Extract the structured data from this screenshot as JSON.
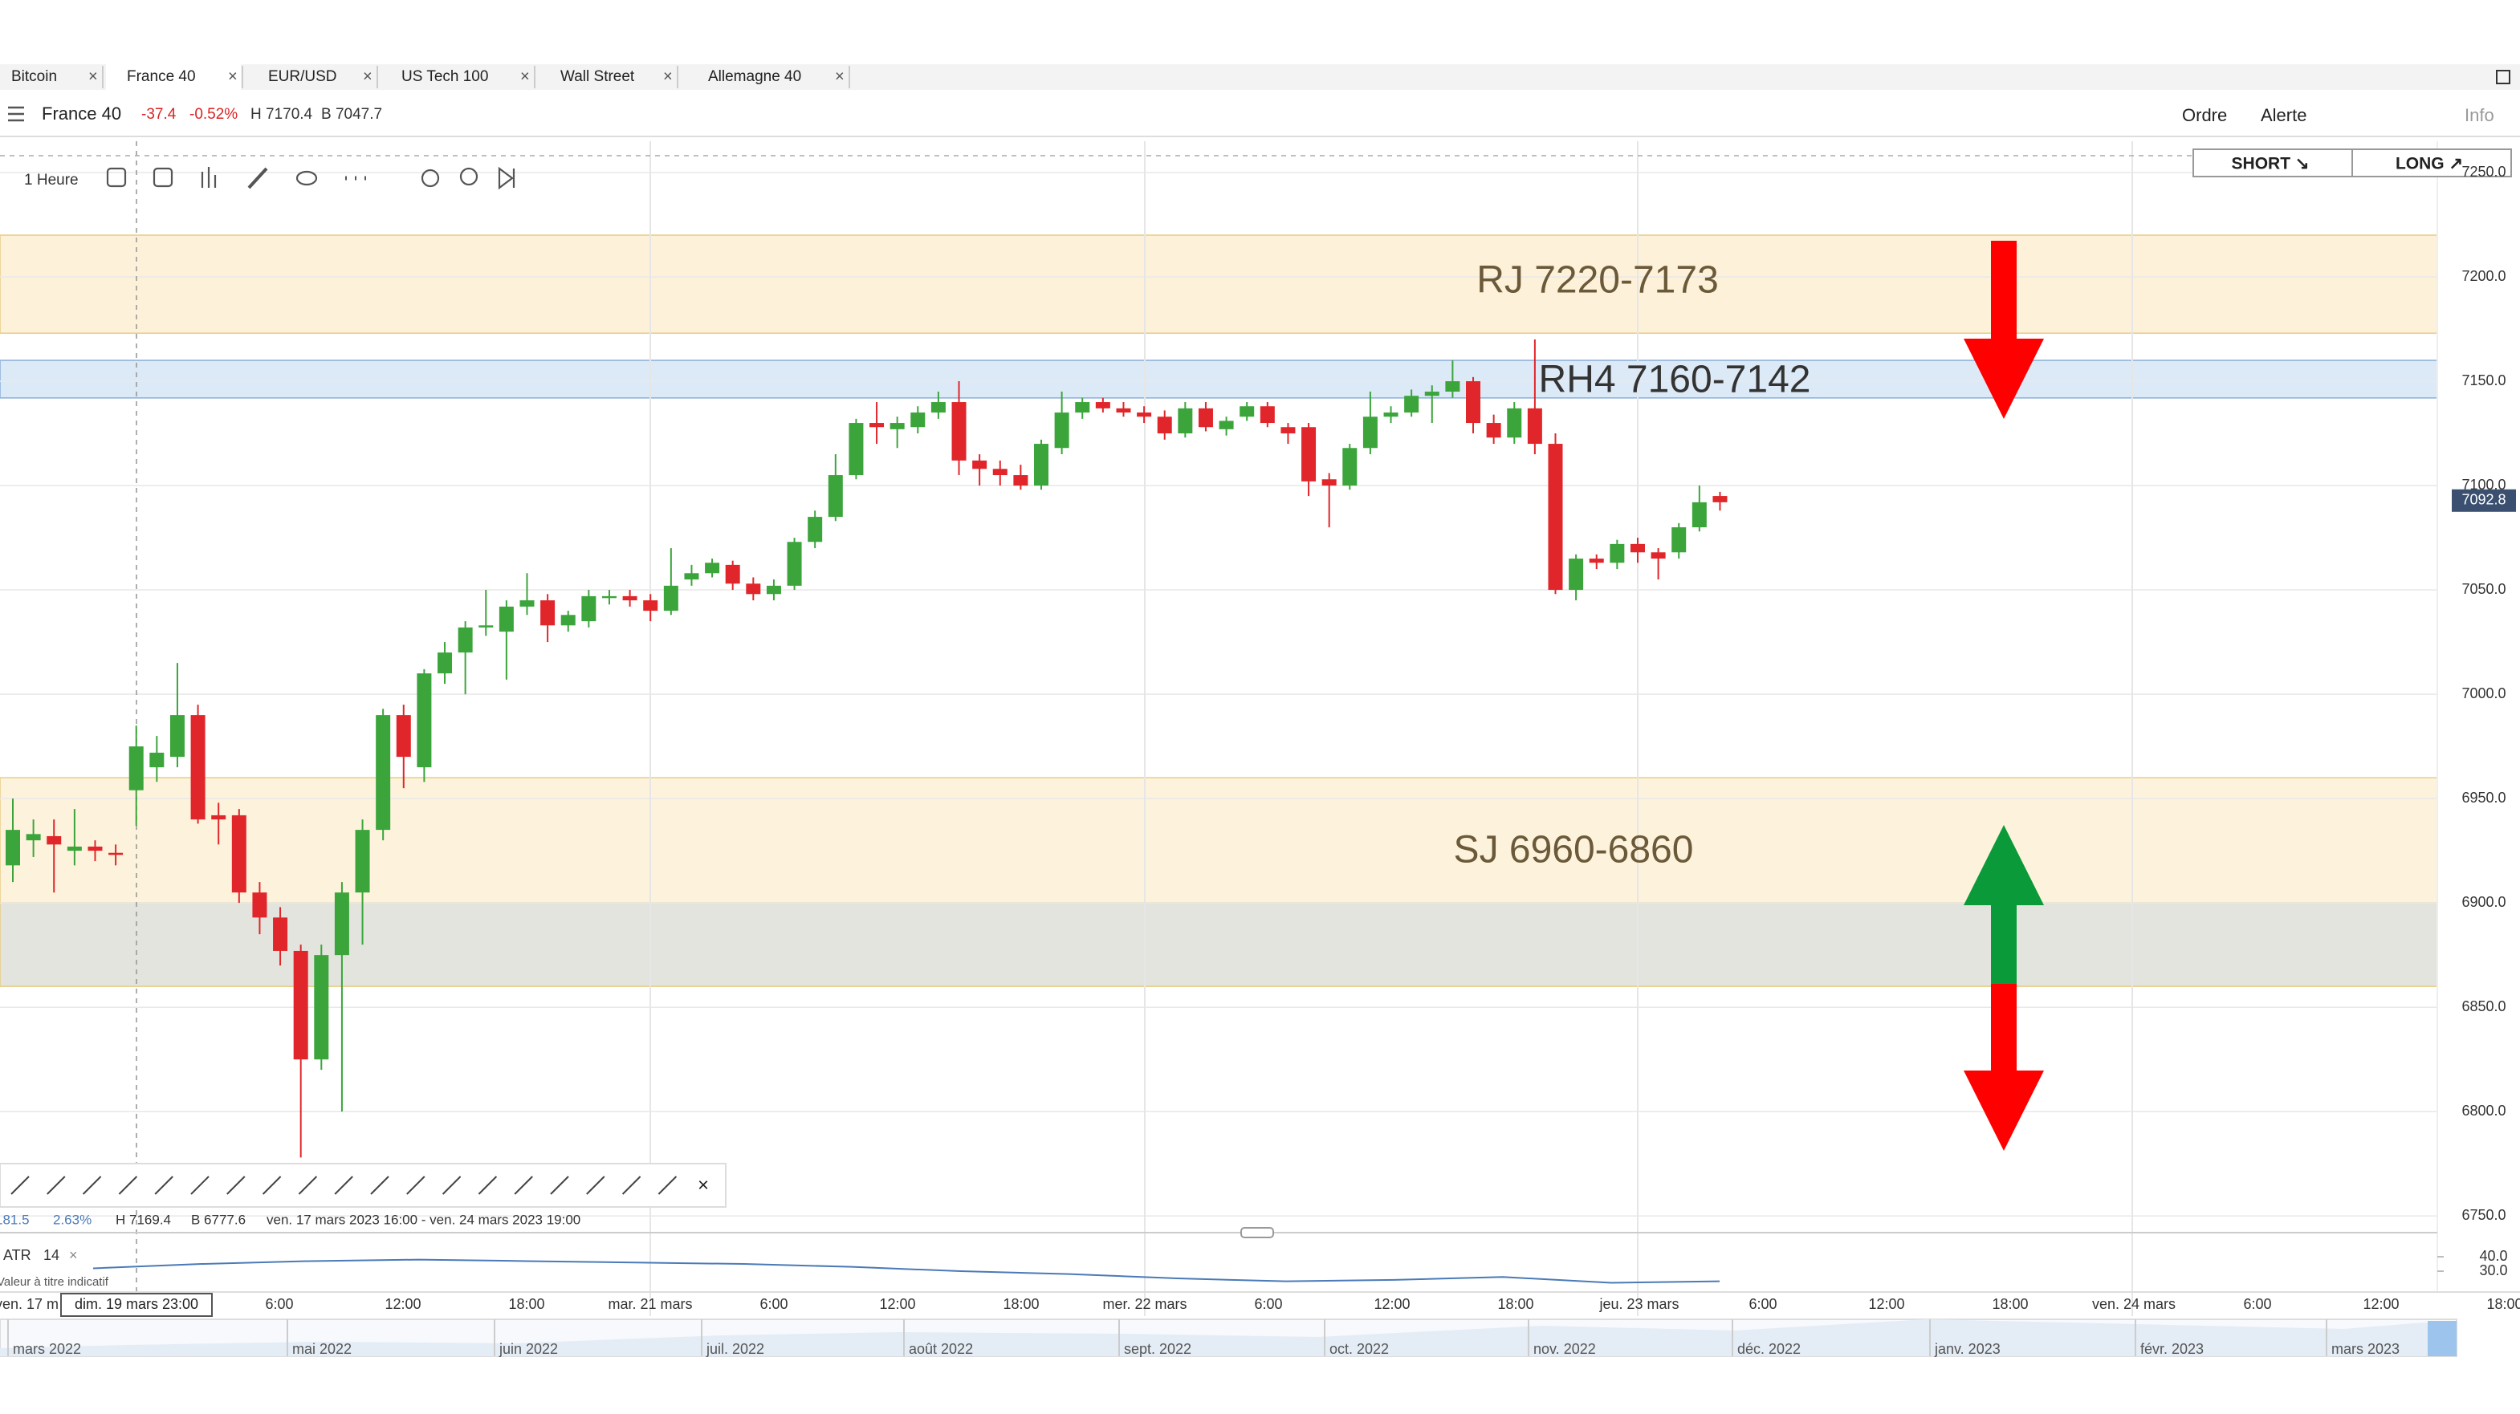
{
  "tabs": [
    "Bitcoin",
    "France 40",
    "EUR/USD",
    "US Tech 100",
    "Wall Street",
    "Allemagne 40"
  ],
  "instrument": {
    "name": "France 40",
    "change": "-37.4",
    "change_pct": "-0.52%",
    "high": "H 7170.4",
    "low": "B 7047.7"
  },
  "menu": [
    "Ordre",
    "Alerte",
    "Info"
  ],
  "timeframe": "1 Heure",
  "buttons": [
    "SHORT ↘",
    "LONG ↗"
  ],
  "footer": {
    "change": "181.5",
    "change_pct": "2.63%",
    "high": "H 7169.4",
    "low": "B 6777.6",
    "range": "ven. 17 mars 2023 16:00 - ven. 24 mars 2023 19:00"
  },
  "indicator": {
    "name": "ATR",
    "period": "14",
    "note": "Valeur à titre indicatif",
    "values": [
      32,
      35,
      37,
      38,
      37,
      36,
      35,
      33,
      30,
      28,
      25,
      23,
      24,
      26,
      22,
      23
    ],
    "ylim": [
      16.7,
      47.8
    ],
    "yticks": [
      {
        "value": 40,
        "label": "40.0"
      },
      {
        "value": 30,
        "label": "30.0"
      }
    ]
  },
  "navigator": [
    "mars 2022",
    "mai 2022",
    "juin 2022",
    "juil. 2022",
    "août 2022",
    "sept. 2022",
    "oct. 2022",
    "nov. 2022",
    "déc. 2022",
    "janv. 2023",
    "févr. 2023",
    "mars 2023"
  ],
  "chart_data": {
    "type": "candlestick",
    "ylim": [
      6742,
      7265
    ],
    "yticks": [
      {
        "value": 7250,
        "label": "7250.0"
      },
      {
        "value": 7200,
        "label": "7200.0"
      },
      {
        "value": 7150,
        "label": "7150.0"
      },
      {
        "value": 7100,
        "label": "7100.0"
      },
      {
        "value": 7050,
        "label": "7050.0"
      },
      {
        "value": 7000,
        "label": "7000.0"
      },
      {
        "value": 6950,
        "label": "6950.0"
      },
      {
        "value": 6900,
        "label": "6900.0"
      },
      {
        "value": 6850,
        "label": "6850.0"
      },
      {
        "value": 6800,
        "label": "6800.0"
      },
      {
        "value": 6750,
        "label": "6750.0"
      }
    ],
    "last_price": {
      "value": 7092.8,
      "label": "7092.8"
    },
    "zones": [
      {
        "label": "RJ 7220-7173",
        "top": 7220,
        "bottom": 7173,
        "color": "#fdf2d9"
      },
      {
        "label": "RH4 7160-7142",
        "top": 7160,
        "bottom": 7142,
        "color": "#dce9f6"
      },
      {
        "label": "SJ 6960-6860",
        "top": 6960,
        "bottom": 6900,
        "color": "#fdf3dc"
      },
      {
        "top": 6900,
        "bottom": 6860,
        "color": "#e2e4dd"
      }
    ],
    "time_labels": [
      "ven. 17 m",
      "dim. 19 mars 23:00",
      "6:00",
      "12:00",
      "18:00",
      "mar. 21 mars",
      "6:00",
      "12:00",
      "18:00",
      "mer. 22 mars",
      "6:00",
      "12:00",
      "18:00",
      "jeu. 23 mars",
      "6:00",
      "12:00",
      "18:00",
      "ven. 24 mars",
      "6:00",
      "12:00",
      "18:00"
    ],
    "up_color": "#3ba53b",
    "down_color": "#e0262a",
    "open": [
      6918,
      6930,
      6932,
      6925,
      6927,
      6924,
      6954,
      6965,
      6970,
      6990,
      6942,
      6942,
      6905,
      6893,
      6877,
      6825,
      6875,
      6905,
      6935,
      6990,
      6965,
      7010,
      7020,
      7032,
      7030,
      7042,
      7045,
      7033,
      7035,
      7047,
      7047,
      7045,
      7040,
      7055,
      7058,
      7062,
      7053,
      7048,
      7052,
      7073,
      7085,
      7105,
      7130,
      7127,
      7128,
      7135,
      7140,
      7112,
      7108,
      7105,
      7100,
      7118,
      7135,
      7140,
      7137,
      7135,
      7133,
      7125,
      7137,
      7127,
      7133,
      7138,
      7128,
      7128,
      7103,
      7100,
      7118,
      7133,
      7135,
      7143,
      7145,
      7150,
      7130,
      7123,
      7137,
      7120,
      7050,
      7065,
      7063,
      7072,
      7068,
      7068,
      7080,
      7095
    ],
    "high": [
      6950,
      6940,
      6940,
      6945,
      6930,
      6928,
      6985,
      6980,
      7015,
      6995,
      6948,
      6945,
      6910,
      6898,
      6880,
      6880,
      6910,
      6940,
      6993,
      6995,
      7012,
      7025,
      7035,
      7050,
      7045,
      7058,
      7048,
      7040,
      7050,
      7050,
      7050,
      7048,
      7070,
      7062,
      7065,
      7064,
      7056,
      7055,
      7075,
      7088,
      7115,
      7132,
      7140,
      7133,
      7138,
      7145,
      7150,
      7115,
      7112,
      7110,
      7122,
      7145,
      7142,
      7142,
      7140,
      7138,
      7136,
      7140,
      7140,
      7133,
      7140,
      7140,
      7130,
      7130,
      7106,
      7120,
      7145,
      7138,
      7146,
      7148,
      7160,
      7152,
      7134,
      7140,
      7170,
      7125,
      7067,
      7067,
      7074,
      7075,
      7070,
      7082,
      7100,
      7097
    ],
    "low": [
      6910,
      6922,
      6905,
      6918,
      6920,
      6918,
      6937,
      6958,
      6965,
      6938,
      6928,
      6900,
      6885,
      6870,
      6778,
      6820,
      6800,
      6880,
      6930,
      6955,
      6958,
      7005,
      7000,
      7028,
      7007,
      7038,
      7025,
      7030,
      7032,
      7043,
      7042,
      7035,
      7038,
      7052,
      7056,
      7050,
      7045,
      7045,
      7050,
      7070,
      7083,
      7103,
      7120,
      7118,
      7125,
      7132,
      7105,
      7100,
      7100,
      7098,
      7098,
      7115,
      7132,
      7135,
      7133,
      7130,
      7122,
      7123,
      7126,
      7124,
      7131,
      7128,
      7120,
      7095,
      7080,
      7098,
      7115,
      7130,
      7133,
      7130,
      7142,
      7125,
      7120,
      7120,
      7115,
      7048,
      7045,
      7060,
      7060,
      7063,
      7055,
      7065,
      7078,
      7088
    ],
    "close": [
      6935,
      6933,
      6928,
      6927,
      6925,
      6923,
      6975,
      6972,
      6990,
      6940,
      6940,
      6905,
      6893,
      6877,
      6825,
      6875,
      6905,
      6935,
      6990,
      6970,
      7010,
      7020,
      7032,
      7033,
      7042,
      7045,
      7033,
      7038,
      7047,
      7047,
      7045,
      7040,
      7052,
      7058,
      7063,
      7053,
      7048,
      7052,
      7073,
      7085,
      7105,
      7130,
      7128,
      7130,
      7135,
      7140,
      7112,
      7108,
      7105,
      7100,
      7120,
      7135,
      7140,
      7137,
      7135,
      7133,
      7125,
      7137,
      7128,
      7131,
      7138,
      7130,
      7125,
      7102,
      7100,
      7118,
      7133,
      7135,
      7143,
      7145,
      7150,
      7130,
      7123,
      7137,
      7120,
      7050,
      7065,
      7063,
      7072,
      7068,
      7065,
      7080,
      7092,
      7092
    ]
  }
}
